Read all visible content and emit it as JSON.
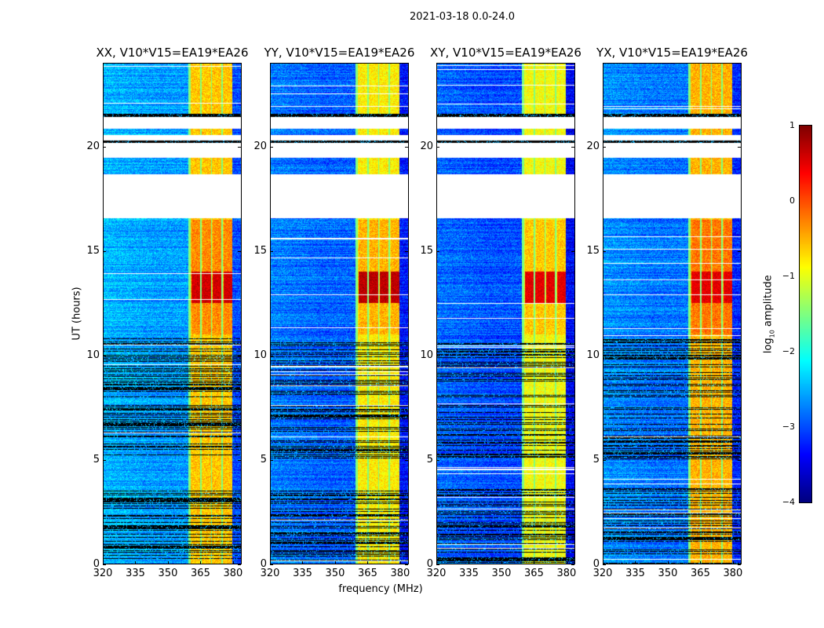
{
  "chart_data": {
    "type": "heatmap",
    "title": "2021-03-18 0.0-24.0",
    "xlabel": "frequency (MHz)",
    "ylabel": "UT (hours)",
    "xlim": [
      320,
      384
    ],
    "ylim": [
      0,
      24
    ],
    "xticks": [
      "320",
      "335",
      "350",
      "365",
      "380"
    ],
    "yticks": [
      "0",
      "5",
      "10",
      "15",
      "20"
    ],
    "colormap": "jet",
    "clim": [
      -4,
      1
    ],
    "colorbar": {
      "label": "log10 amplitude",
      "ticks": [
        "1",
        "0",
        "−1",
        "−2",
        "−3",
        "−4"
      ]
    },
    "panels": [
      {
        "title": "XX, V10*V15=EA19*EA26",
        "band_level": -0.6,
        "base_level": -2.6,
        "peak_level": 0.6
      },
      {
        "title": "YY, V10*V15=EA19*EA26",
        "band_level": -0.8,
        "base_level": -2.9,
        "peak_level": 0.7
      },
      {
        "title": "XY, V10*V15=EA19*EA26",
        "band_level": -0.9,
        "base_level": -3.0,
        "peak_level": 0.5
      },
      {
        "title": "YX, V10*V15=EA19*EA26",
        "band_level": -0.5,
        "base_level": -2.8,
        "peak_level": 0.5
      }
    ],
    "rfi_band_mhz": [
      360,
      380
    ],
    "strong_rfi_hours": [
      12.5,
      14.0
    ],
    "flagged_gap_hours": [
      [
        16.57,
        18.67
      ],
      [
        19.46,
        20.21
      ],
      [
        20.29,
        20.59
      ],
      [
        20.89,
        21.45
      ]
    ],
    "black_flag_hours": [
      [
        18.64,
        18.69
      ],
      [
        20.21,
        20.29
      ],
      [
        21.45,
        21.6
      ]
    ],
    "dense_flagging_hours": [
      [
        0,
        3.6
      ],
      [
        5.0,
        7.6
      ],
      [
        8.0,
        10.8
      ]
    ]
  }
}
